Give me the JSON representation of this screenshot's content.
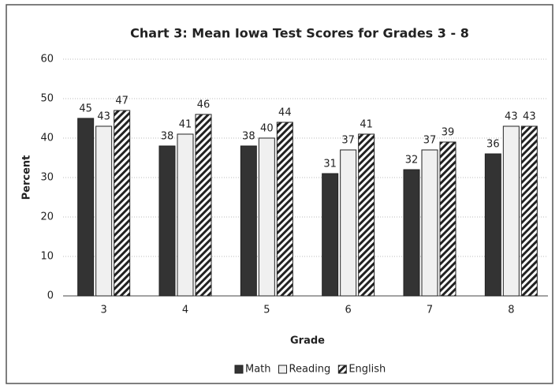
{
  "chart_data": {
    "type": "bar",
    "title": "Chart 3: Mean Iowa Test Scores for Grades 3 - 8",
    "x_label": "Grade",
    "y_label": "Percent",
    "categories": [
      "3",
      "4",
      "5",
      "6",
      "7",
      "8"
    ],
    "series": [
      {
        "name": "Math",
        "color": "#333333",
        "values": [
          45,
          38,
          38,
          31,
          32,
          36
        ]
      },
      {
        "name": "Reading",
        "color": "#f0f0f0",
        "values": [
          43,
          41,
          40,
          37,
          37,
          43
        ]
      },
      {
        "name": "English",
        "color": "#222222",
        "hatch": true,
        "values": [
          47,
          46,
          44,
          41,
          39,
          43
        ]
      }
    ],
    "ylim": [
      0,
      60
    ],
    "yticks": [
      0,
      10,
      20,
      30,
      40,
      50,
      60
    ],
    "grid": true,
    "legend": "bottom"
  }
}
